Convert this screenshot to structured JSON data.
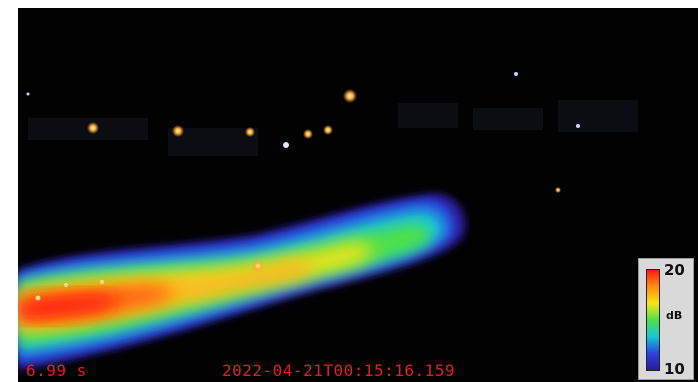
{
  "overlay": {
    "elapsed_time": "6.99 s",
    "timestamp": "2022-04-21T00:15:16.159"
  },
  "colorbar": {
    "max_label": "20",
    "unit_label": "dB",
    "min_label": "10",
    "gradient_colors": [
      "#ff1a10",
      "#ff8c10",
      "#f6e616",
      "#4ee04a",
      "#14c8d8",
      "#2a44e0",
      "#2a1a9a"
    ]
  },
  "colors": {
    "text_overlay": "#e0201c",
    "background": "#020203"
  }
}
